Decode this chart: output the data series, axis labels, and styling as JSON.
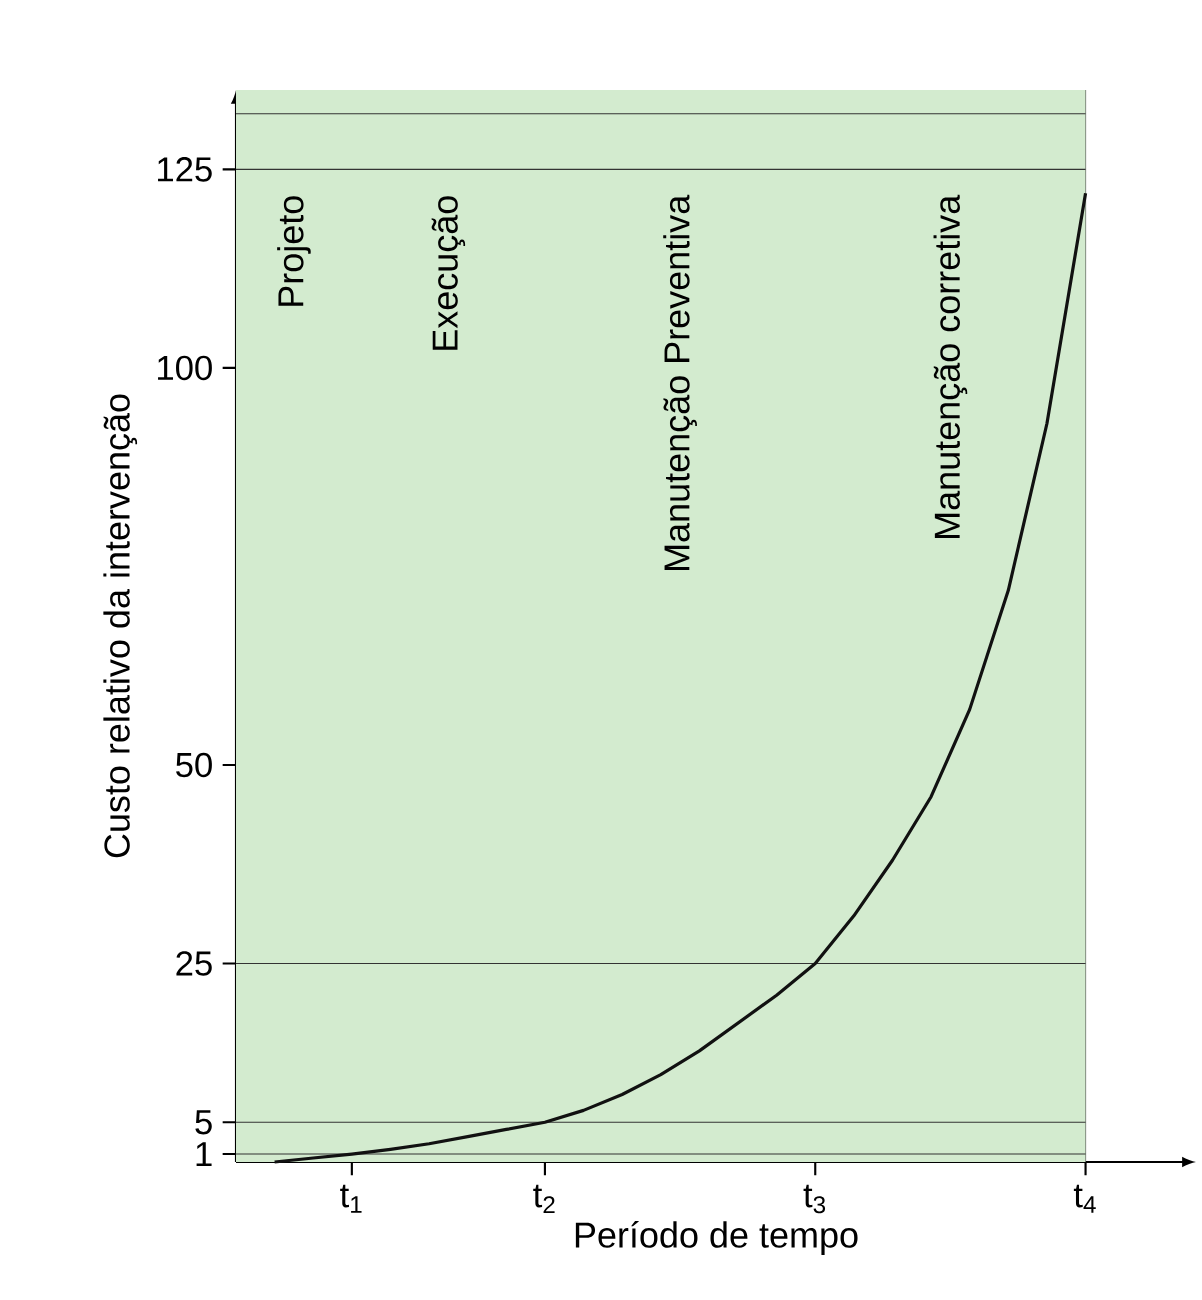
{
  "chart_data": {
    "type": "line",
    "xlabel": "Período de tempo",
    "ylabel": "Custo relativo da intervenção",
    "categories": [
      null,
      null,
      null,
      "t$_{1}$",
      null,
      null,
      null,
      null,
      "t$_{2}$",
      null,
      null,
      null,
      null,
      null,
      null,
      "t$_{3}$",
      null,
      null,
      null,
      null,
      null,
      null,
      "t$_{4}$"
    ],
    "ylim": [
      0,
      135
    ],
    "yticks": [
      1,
      5,
      25,
      50,
      100,
      125
    ],
    "grid": "x",
    "series": [
      {
        "color": "#111111",
        "values": [
          null,
          0,
          0.5,
          1,
          1.6,
          2.3,
          3.2,
          4.1,
          5,
          6.5,
          8.5,
          11,
          14,
          17.5,
          21,
          25,
          31,
          38,
          46,
          57,
          72,
          93,
          122
        ]
      }
    ],
    "ref_lines": [
      {
        "axis": "y",
        "value": 1,
        "color": "#333333"
      },
      {
        "axis": "y",
        "value": 5,
        "color": "#333333"
      },
      {
        "axis": "y",
        "value": 25,
        "color": "#333333"
      },
      {
        "axis": "y",
        "value": 125,
        "color": "#333333"
      },
      {
        "axis": "y",
        "value": 132,
        "color": "#333333"
      }
    ],
    "annotations": [
      "Projeto",
      "Execução",
      "Manutenção Preventiva",
      "Manutenção corretiva"
    ]
  }
}
